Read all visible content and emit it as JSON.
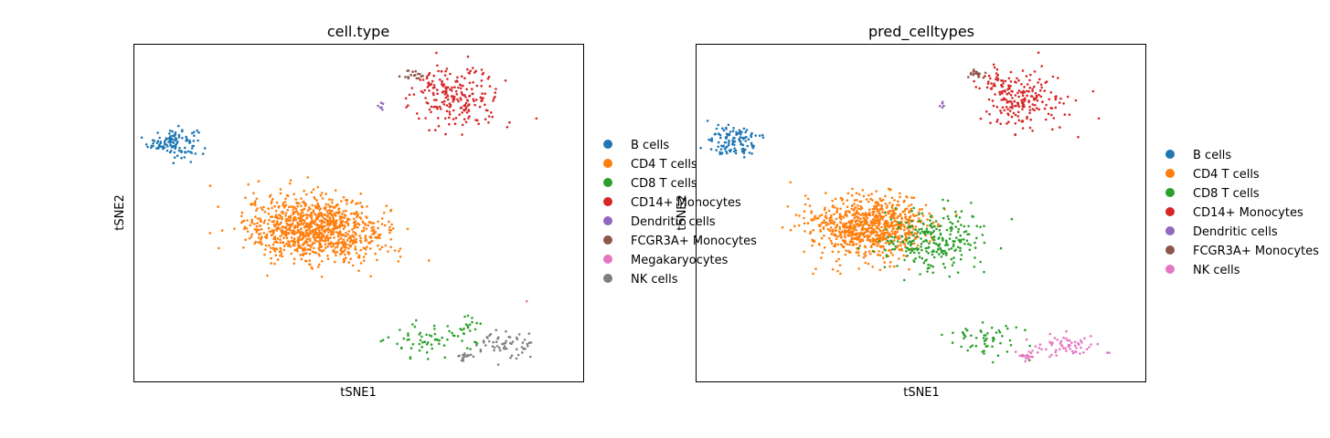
{
  "chart_data": [
    {
      "type": "scatter",
      "title": "cell.type",
      "xlabel": "tSNE1",
      "ylabel": "tSNE2",
      "xticks": [],
      "yticks": [],
      "grid": false,
      "legend_position": "right",
      "series": [
        {
          "name": "B cells",
          "color": "#1f77b4",
          "clusters": [
            {
              "cx": -33,
              "cy": 19,
              "sx": 2.2,
              "sy": 1.2,
              "n": 120
            }
          ]
        },
        {
          "name": "CD4 T cells",
          "color": "#ff7f0e",
          "clusters": [
            {
              "cx": -9,
              "cy": 5,
              "sx": 5.5,
              "sy": 2.6,
              "n": 820
            },
            {
              "cx": -1,
              "cy": 4,
              "sx": 4.0,
              "sy": 2.5,
              "n": 180
            }
          ]
        },
        {
          "name": "CD8 T cells",
          "color": "#2ca02c",
          "clusters": [
            {
              "cx": 12,
              "cy": -13,
              "sx": 3.5,
              "sy": 1.5,
              "n": 55
            },
            {
              "cx": 19,
              "cy": -12,
              "sx": 1.6,
              "sy": 1.2,
              "n": 25
            }
          ]
        },
        {
          "name": "CD14+ Monocytes",
          "color": "#d62728",
          "clusters": [
            {
              "cx": 18,
              "cy": 26,
              "sx": 3.8,
              "sy": 2.3,
              "n": 190
            },
            {
              "cx": 14,
              "cy": 29,
              "sx": 1.8,
              "sy": 1.0,
              "n": 30
            }
          ]
        },
        {
          "name": "Dendritic cells",
          "color": "#9467bd",
          "clusters": [
            {
              "cx": 4,
              "cy": 25,
              "sx": 0.6,
              "sy": 0.3,
              "n": 6
            }
          ]
        },
        {
          "name": "FCGR3A+ Monocytes",
          "color": "#8c564b",
          "clusters": [
            {
              "cx": 10,
              "cy": 30,
              "sx": 1.0,
              "sy": 0.4,
              "n": 18
            }
          ]
        },
        {
          "name": "Megakaryocytes",
          "color": "#e377c2",
          "clusters": [
            {
              "cx": 30,
              "cy": -7,
              "sx": 0.2,
              "sy": 0.2,
              "n": 1
            }
          ]
        },
        {
          "name": "NK cells",
          "color": "#7f7f7f",
          "clusters": [
            {
              "cx": 26,
              "cy": -14,
              "sx": 2.8,
              "sy": 1.0,
              "n": 60
            },
            {
              "cx": 19,
              "cy": -16,
              "sx": 0.6,
              "sy": 0.4,
              "n": 15
            }
          ]
        }
      ]
    },
    {
      "type": "scatter",
      "title": "pred_celltypes",
      "xlabel": "tSNE1",
      "ylabel": "tSNE2",
      "xticks": [],
      "yticks": [],
      "grid": false,
      "legend_position": "right",
      "series": [
        {
          "name": "B cells",
          "color": "#1f77b4",
          "clusters": [
            {
              "cx": -33,
              "cy": 19,
              "sx": 2.2,
              "sy": 1.2,
              "n": 120
            }
          ]
        },
        {
          "name": "CD4 T cells",
          "color": "#ff7f0e",
          "clusters": [
            {
              "cx": -10,
              "cy": 5,
              "sx": 5.0,
              "sy": 2.6,
              "n": 720
            },
            {
              "cx": -4,
              "cy": 6,
              "sx": 3.0,
              "sy": 2.0,
              "n": 100
            }
          ]
        },
        {
          "name": "CD8 T cells",
          "color": "#2ca02c",
          "clusters": [
            {
              "cx": 2,
              "cy": 3,
              "sx": 5.0,
              "sy": 2.5,
              "n": 260
            },
            {
              "cx": 12,
              "cy": -13,
              "sx": 3.5,
              "sy": 1.5,
              "n": 55
            }
          ]
        },
        {
          "name": "CD14+ Monocytes",
          "color": "#d62728",
          "clusters": [
            {
              "cx": 18,
              "cy": 26,
              "sx": 3.8,
              "sy": 2.3,
              "n": 190
            },
            {
              "cx": 14,
              "cy": 29,
              "sx": 1.8,
              "sy": 1.0,
              "n": 30
            }
          ]
        },
        {
          "name": "Dendritic cells",
          "color": "#9467bd",
          "clusters": [
            {
              "cx": 4,
              "cy": 25,
              "sx": 0.6,
              "sy": 0.3,
              "n": 5
            }
          ]
        },
        {
          "name": "FCGR3A+ Monocytes",
          "color": "#8c564b",
          "clusters": [
            {
              "cx": 10,
              "cy": 30,
              "sx": 1.0,
              "sy": 0.4,
              "n": 18
            }
          ]
        },
        {
          "name": "NK cells",
          "color": "#e377c2",
          "clusters": [
            {
              "cx": 26,
              "cy": -14,
              "sx": 2.8,
              "sy": 1.0,
              "n": 65
            },
            {
              "cx": 19,
              "cy": -16,
              "sx": 0.8,
              "sy": 0.5,
              "n": 15
            }
          ]
        }
      ]
    }
  ]
}
